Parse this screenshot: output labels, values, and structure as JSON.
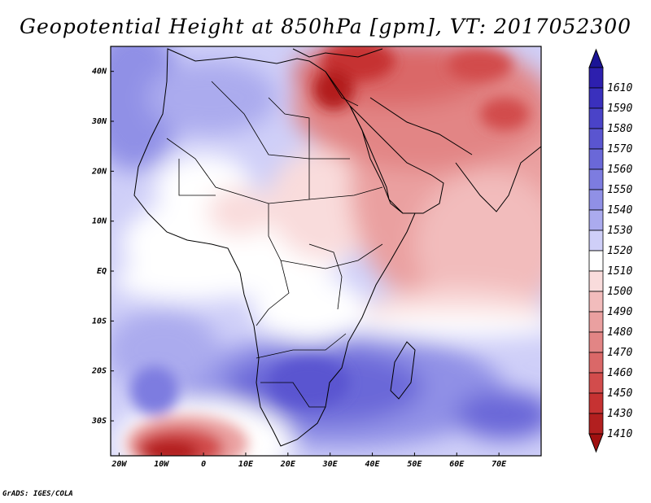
{
  "title": "Geopotential Height at 850hPa [gpm], VT: 2017052300",
  "footer": "GrADS: IGES/COLA",
  "map": {
    "projection": "latlon",
    "lon_range": [
      -22,
      80
    ],
    "lat_range": [
      -37,
      45
    ],
    "lon_ticks": [
      {
        "lon": -20,
        "label": "20W"
      },
      {
        "lon": -10,
        "label": "10W"
      },
      {
        "lon": 0,
        "label": "0"
      },
      {
        "lon": 10,
        "label": "10E"
      },
      {
        "lon": 20,
        "label": "20E"
      },
      {
        "lon": 30,
        "label": "30E"
      },
      {
        "lon": 40,
        "label": "40E"
      },
      {
        "lon": 50,
        "label": "50E"
      },
      {
        "lon": 60,
        "label": "60E"
      },
      {
        "lon": 70,
        "label": "70E"
      }
    ],
    "lat_ticks": [
      {
        "lat": 40,
        "label": "40N"
      },
      {
        "lat": 30,
        "label": "30N"
      },
      {
        "lat": 20,
        "label": "20N"
      },
      {
        "lat": 10,
        "label": "10N"
      },
      {
        "lat": 0,
        "label": "EQ"
      },
      {
        "lat": -10,
        "label": "10S"
      },
      {
        "lat": -20,
        "label": "20S"
      },
      {
        "lat": -30,
        "label": "30S"
      }
    ]
  },
  "colorbar": {
    "levels": [
      {
        "label": "1610",
        "color": "#2d1fae"
      },
      {
        "label": "1590",
        "color": "#3a30bd"
      },
      {
        "label": "1580",
        "color": "#4a43c8"
      },
      {
        "label": "1570",
        "color": "#5a55d0"
      },
      {
        "label": "1560",
        "color": "#6a68d8"
      },
      {
        "label": "1550",
        "color": "#7d7ce0"
      },
      {
        "label": "1540",
        "color": "#9090e6"
      },
      {
        "label": "1530",
        "color": "#ababee"
      },
      {
        "label": "1520",
        "color": "#cfcff8"
      },
      {
        "label": "1510",
        "color": "#ffffff"
      },
      {
        "label": "1500",
        "color": "#f9dcdc"
      },
      {
        "label": "1490",
        "color": "#f2bcbc"
      },
      {
        "label": "1480",
        "color": "#eaa0a0"
      },
      {
        "label": "1470",
        "color": "#e28585"
      },
      {
        "label": "1460",
        "color": "#da6868"
      },
      {
        "label": "1450",
        "color": "#d24c4c"
      },
      {
        "label": "1430",
        "color": "#c63232"
      },
      {
        "label": "1410",
        "color": "#b21f1f"
      }
    ],
    "top_color": "#1b1496",
    "bottom_color": "#a01010"
  }
}
